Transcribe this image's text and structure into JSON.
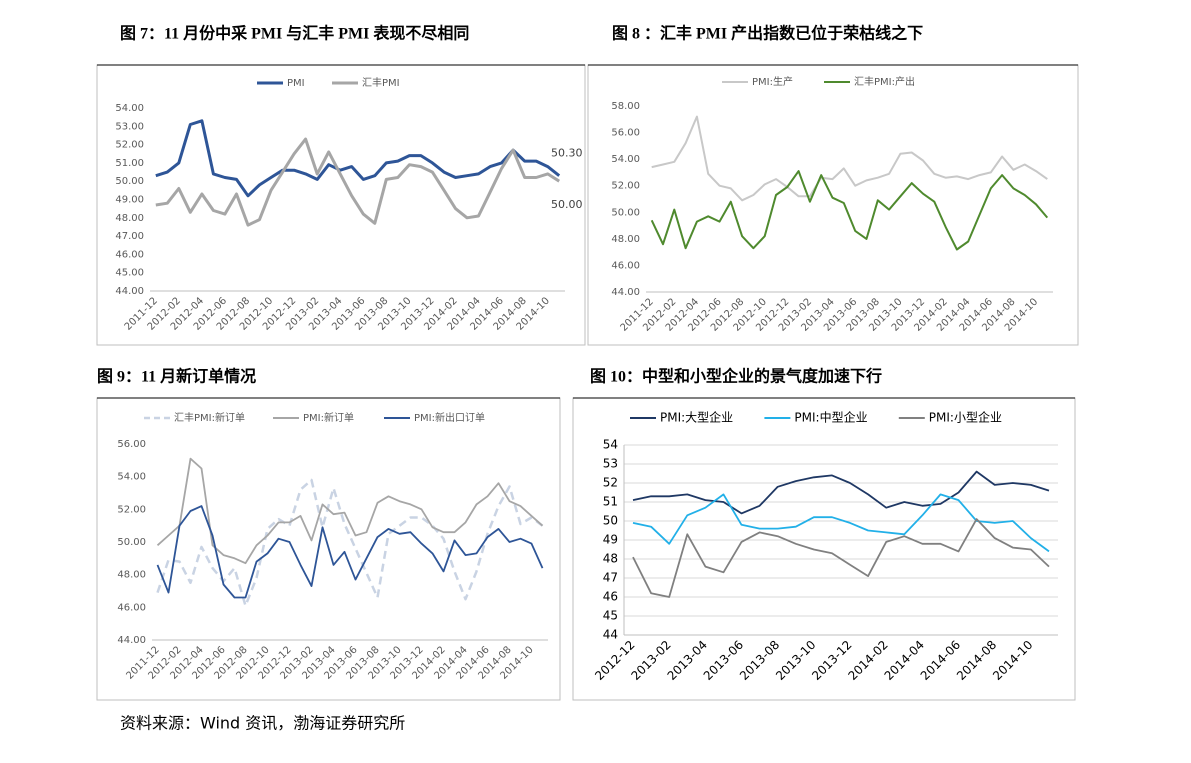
{
  "chart_data": [
    {
      "type": "line",
      "title": "图 7：11 月份中采 PMI 与汇丰 PMI 表现不尽相同",
      "categories": [
        "2011-12",
        null,
        "2012-02",
        null,
        "2012-04",
        null,
        "2012-06",
        null,
        "2012-08",
        null,
        "2012-10",
        null,
        "2012-12",
        null,
        "2013-02",
        null,
        "2013-04",
        null,
        "2013-06",
        null,
        "2013-08",
        null,
        "2013-10",
        null,
        "2013-12",
        null,
        "2014-02",
        null,
        "2014-04",
        null,
        "2014-06",
        null,
        "2014-08",
        null,
        "2014-10",
        null
      ],
      "series": [
        {
          "name": "PMI",
          "color": "#2e5597",
          "width": 3,
          "values": [
            50.3,
            50.5,
            51.0,
            53.1,
            53.3,
            50.4,
            50.2,
            50.1,
            49.2,
            49.8,
            50.2,
            50.6,
            50.6,
            50.4,
            50.1,
            50.9,
            50.6,
            50.8,
            50.1,
            50.3,
            51.0,
            51.1,
            51.4,
            51.4,
            51.0,
            50.5,
            50.2,
            50.3,
            50.4,
            50.8,
            51.0,
            51.7,
            51.1,
            51.1,
            50.8,
            50.3
          ]
        },
        {
          "name": "汇丰PMI",
          "color": "#a6a6a6",
          "width": 3,
          "values": [
            48.7,
            48.8,
            49.6,
            48.3,
            49.3,
            48.4,
            48.2,
            49.3,
            47.6,
            47.9,
            49.5,
            50.5,
            51.5,
            52.3,
            50.4,
            51.6,
            50.4,
            49.2,
            48.2,
            47.7,
            50.1,
            50.2,
            50.9,
            50.8,
            50.5,
            49.5,
            48.5,
            48.0,
            48.1,
            49.4,
            50.7,
            51.7,
            50.2,
            50.2,
            50.4,
            50.0
          ]
        }
      ],
      "annotations": [
        "50.30",
        "50.00"
      ],
      "ylim": [
        44,
        54
      ],
      "yticks": [
        {
          "value": 44,
          "label": "44.00"
        },
        {
          "value": 45,
          "label": "45.00"
        },
        {
          "value": 46,
          "label": "46.00"
        },
        {
          "value": 47,
          "label": "47.00"
        },
        {
          "value": 48,
          "label": "48.00"
        },
        {
          "value": 49,
          "label": "49.00"
        },
        {
          "value": 50,
          "label": "50.00"
        },
        {
          "value": 51,
          "label": "51.00"
        },
        {
          "value": 52,
          "label": "52.00"
        },
        {
          "value": 53,
          "label": "53.00"
        },
        {
          "value": 54,
          "label": "54.00"
        }
      ],
      "grid": false
    },
    {
      "type": "line",
      "title": "图 8 ：汇丰 PMI 产出指数已位于荣枯线之下",
      "categories": [
        "2011-12",
        null,
        "2012-02",
        null,
        "2012-04",
        null,
        "2012-06",
        null,
        "2012-08",
        null,
        "2012-10",
        null,
        "2012-12",
        null,
        "2013-02",
        null,
        "2013-04",
        null,
        "2013-06",
        null,
        "2013-08",
        null,
        "2013-10",
        null,
        "2013-12",
        null,
        "2014-02",
        null,
        "2014-04",
        null,
        "2014-06",
        null,
        "2014-08",
        null,
        "2014-10",
        null
      ],
      "series": [
        {
          "name": "PMI:生产",
          "color": "#c8c8c8",
          "width": 2,
          "values": [
            53.4,
            53.6,
            53.8,
            55.2,
            57.2,
            52.9,
            52.0,
            51.8,
            50.9,
            51.3,
            52.1,
            52.5,
            51.9,
            51.2,
            51.2,
            52.6,
            52.5,
            53.3,
            52.0,
            52.4,
            52.6,
            52.9,
            54.4,
            54.5,
            53.9,
            52.9,
            52.6,
            52.7,
            52.5,
            52.8,
            53.0,
            54.2,
            53.2,
            53.6,
            53.1,
            52.5
          ]
        },
        {
          "name": "汇丰PMI:产出",
          "color": "#4f8a2e",
          "width": 2,
          "values": [
            49.4,
            47.6,
            50.2,
            47.3,
            49.3,
            49.7,
            49.3,
            50.8,
            48.2,
            47.3,
            48.2,
            51.3,
            51.9,
            53.1,
            50.8,
            52.8,
            51.1,
            50.7,
            48.6,
            48.0,
            50.9,
            50.2,
            51.2,
            52.2,
            51.4,
            50.8,
            48.9,
            47.2,
            47.8,
            49.8,
            51.8,
            52.8,
            51.8,
            51.3,
            50.6,
            49.6
          ]
        }
      ],
      "ylim": [
        44,
        58
      ],
      "yticks": [
        {
          "value": 44,
          "label": "44.00"
        },
        {
          "value": 46,
          "label": "46.00"
        },
        {
          "value": 48,
          "label": "48.00"
        },
        {
          "value": 50,
          "label": "50.00"
        },
        {
          "value": 52,
          "label": "52.00"
        },
        {
          "value": 54,
          "label": "54.00"
        },
        {
          "value": 56,
          "label": "56.00"
        },
        {
          "value": 58,
          "label": "58.00"
        }
      ],
      "grid": false
    },
    {
      "type": "line",
      "title": "图 9：11 月新订单情况",
      "categories": [
        "2011-12",
        null,
        "2012-02",
        null,
        "2012-04",
        null,
        "2012-06",
        null,
        "2012-08",
        null,
        "2012-10",
        null,
        "2012-12",
        null,
        "2013-02",
        null,
        "2013-04",
        null,
        "2013-06",
        null,
        "2013-08",
        null,
        "2013-10",
        null,
        "2013-12",
        null,
        "2014-02",
        null,
        "2014-04",
        null,
        "2014-06",
        null,
        "2014-08",
        null,
        "2014-10",
        null
      ],
      "series": [
        {
          "name": "汇丰PMI:新订单",
          "color": "#c9d3e3",
          "width": 2.5,
          "dashed": true,
          "values": [
            46.9,
            48.9,
            48.8,
            47.5,
            49.7,
            48.4,
            47.6,
            48.4,
            46.1,
            47.8,
            50.8,
            51.4,
            51.0,
            53.2,
            53.8,
            50.9,
            53.3,
            51.1,
            49.6,
            48.1,
            46.6,
            50.5,
            51.0,
            51.5,
            51.5,
            51.0,
            50.2,
            48.2,
            46.5,
            48.2,
            50.5,
            52.2,
            53.4,
            51.1,
            51.5,
            51.0
          ]
        },
        {
          "name": "PMI:新订单",
          "color": "#a6a6a6",
          "width": 1.8,
          "values": [
            49.8,
            50.4,
            51.0,
            55.1,
            54.5,
            49.8,
            49.2,
            49.0,
            48.7,
            49.8,
            50.4,
            51.2,
            51.2,
            51.6,
            50.1,
            52.3,
            51.7,
            51.8,
            50.4,
            50.6,
            52.4,
            52.8,
            52.5,
            52.3,
            52.0,
            50.9,
            50.6,
            50.6,
            51.2,
            52.3,
            52.8,
            53.6,
            52.5,
            52.2,
            51.6,
            51.0
          ]
        },
        {
          "name": "PMI:新出口订单",
          "color": "#2e5597",
          "width": 1.8,
          "values": [
            48.6,
            46.9,
            51.0,
            51.9,
            52.2,
            50.4,
            47.4,
            46.6,
            46.6,
            48.8,
            49.3,
            50.2,
            50.0,
            48.6,
            47.3,
            50.9,
            48.6,
            49.4,
            47.7,
            49.0,
            50.3,
            50.8,
            50.5,
            50.6,
            49.9,
            49.3,
            48.2,
            50.1,
            49.2,
            49.3,
            50.3,
            50.8,
            50.0,
            50.2,
            49.9,
            48.4
          ]
        }
      ],
      "ylim": [
        44,
        56
      ],
      "yticks": [
        {
          "value": 44,
          "label": "44.00"
        },
        {
          "value": 46,
          "label": "46.00"
        },
        {
          "value": 48,
          "label": "48.00"
        },
        {
          "value": 50,
          "label": "50.00"
        },
        {
          "value": 52,
          "label": "52.00"
        },
        {
          "value": 54,
          "label": "54.00"
        },
        {
          "value": 56,
          "label": "56.00"
        }
      ],
      "grid": false
    },
    {
      "type": "line",
      "title": "图 10：中型和小型企业的景气度加速下行",
      "categories": [
        "2012-12",
        null,
        "2013-02",
        null,
        "2013-04",
        null,
        "2013-06",
        null,
        "2013-08",
        null,
        "2013-10",
        null,
        "2013-12",
        null,
        "2014-02",
        null,
        "2014-04",
        null,
        "2014-06",
        null,
        "2014-08",
        null,
        "2014-10",
        null
      ],
      "series": [
        {
          "name": "PMI:大型企业",
          "color": "#1f3864",
          "width": 1.8,
          "values": [
            51.1,
            51.3,
            51.3,
            51.4,
            51.1,
            51.0,
            50.4,
            50.8,
            51.8,
            52.1,
            52.3,
            52.4,
            52.0,
            51.4,
            50.7,
            51.0,
            50.8,
            50.9,
            51.5,
            52.6,
            51.9,
            52.0,
            51.9,
            51.6
          ]
        },
        {
          "name": "PMI:中型企业",
          "color": "#22b0e8",
          "width": 1.8,
          "values": [
            49.9,
            49.7,
            48.8,
            50.3,
            50.7,
            51.4,
            49.8,
            49.6,
            49.6,
            49.7,
            50.2,
            50.2,
            49.9,
            49.5,
            49.4,
            49.3,
            50.3,
            51.4,
            51.1,
            50.0,
            49.9,
            50.0,
            49.1,
            48.4
          ]
        },
        {
          "name": "PMI:小型企业",
          "color": "#808080",
          "width": 1.8,
          "values": [
            48.1,
            46.2,
            46.0,
            49.3,
            47.6,
            47.3,
            48.9,
            49.4,
            49.2,
            48.8,
            48.5,
            48.3,
            47.7,
            47.1,
            48.9,
            49.2,
            48.8,
            48.8,
            48.4,
            50.1,
            49.1,
            48.6,
            48.5,
            47.6
          ]
        }
      ],
      "ylim": [
        44,
        54
      ],
      "yticks": [
        44,
        45,
        46,
        47,
        48,
        49,
        50,
        51,
        52,
        53,
        54
      ],
      "grid": true
    }
  ],
  "source": "资料来源：Wind 资讯，渤海证券研究所"
}
